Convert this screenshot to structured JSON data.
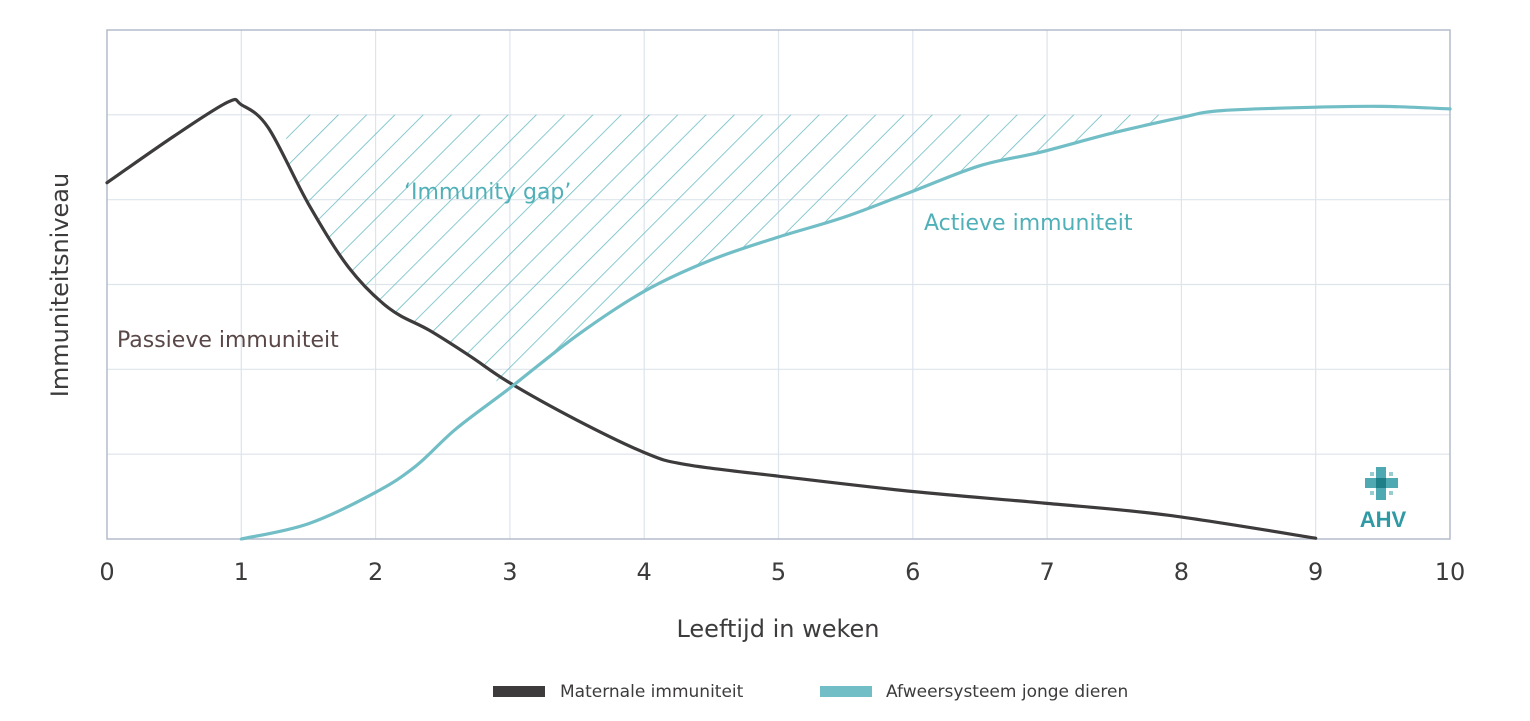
{
  "chart_data": {
    "type": "line",
    "xlabel": "Leeftijd in weken",
    "ylabel": "Immuniteitsniveau",
    "x_ticks": [
      "0",
      "1",
      "2",
      "3",
      "4",
      "5",
      "6",
      "7",
      "8",
      "9",
      "10"
    ],
    "xlim": [
      0,
      10
    ],
    "ylim": [
      0,
      6
    ],
    "grid": true,
    "legend_placement": "bottom-center",
    "series": [
      {
        "name": "Maternale immuniteit",
        "color": "#3d3b3b",
        "x": [
          0,
          0.5,
          0.9,
          1.0,
          1.2,
          1.5,
          1.8,
          2.1,
          2.4,
          2.7,
          3.0,
          3.5,
          4.0,
          4.3,
          5.0,
          6.0,
          7.0,
          7.9,
          9.0
        ],
        "y": [
          4.2,
          4.75,
          5.15,
          5.12,
          4.85,
          3.95,
          3.2,
          2.72,
          2.46,
          2.16,
          1.84,
          1.4,
          1.02,
          0.88,
          0.74,
          0.56,
          0.42,
          0.28,
          0.01
        ]
      },
      {
        "name": "Afweersysteem jonge dieren",
        "color": "#72bec6",
        "x": [
          1.0,
          1.5,
          2.0,
          2.3,
          2.6,
          3.0,
          3.5,
          4.0,
          4.5,
          5.0,
          5.5,
          6.0,
          6.5,
          6.95,
          7.5,
          8.0,
          8.3,
          9.0,
          9.5,
          10.0
        ],
        "y": [
          0.0,
          0.18,
          0.55,
          0.86,
          1.3,
          1.78,
          2.4,
          2.92,
          3.29,
          3.56,
          3.8,
          4.1,
          4.4,
          4.56,
          4.79,
          4.97,
          5.05,
          5.09,
          5.1,
          5.07
        ]
      }
    ],
    "annotations": {
      "passive": "Passieve immuniteit",
      "gap": "‘Immunity gap’",
      "active": "Actieve immuniteit",
      "logo": "AHV"
    },
    "colors": {
      "maternal": "#3d3b3b",
      "active": "#72bec6",
      "gap_hatch": "#6bbcc3",
      "annotation_passive": "#5a4848",
      "annotation_teal": "#4fb0b8",
      "grid": "#dde4ec",
      "frame": "#b3bccb",
      "logo": "#2f9aa4"
    }
  }
}
